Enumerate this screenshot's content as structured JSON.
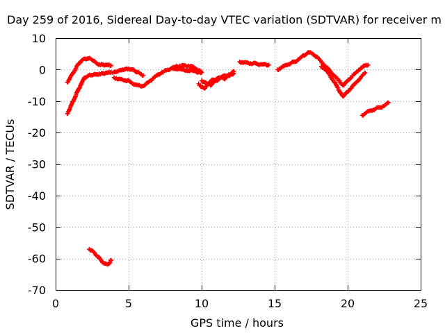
{
  "chart_data": {
    "type": "scatter",
    "title": "Day 259 of 2016, Sidereal Day-to-day VTEC variation (SDTVAR) for receiver m",
    "xlabel": "GPS time / hours",
    "ylabel": "SDTVAR / TECUs",
    "xlim": [
      0,
      25
    ],
    "ylim": [
      -70,
      10
    ],
    "x_ticks": [
      0,
      5,
      10,
      15,
      20,
      25
    ],
    "y_ticks": [
      10,
      0,
      -10,
      -20,
      -30,
      -40,
      -50,
      -60,
      -70
    ],
    "grid": true,
    "legend": "none",
    "marker": "+",
    "color": "#ff0000",
    "series": [
      {
        "x": [
          0.8,
          1.0,
          1.2,
          1.4,
          1.6,
          1.8,
          2.0,
          2.2,
          2.4,
          2.6,
          2.8,
          3.0,
          3.2,
          3.4,
          3.6,
          3.8
        ],
        "y": [
          -4,
          -2.5,
          -1,
          0.5,
          2,
          3,
          3.5,
          3.5,
          3.4,
          2.8,
          2,
          1.7,
          1.6,
          1.5,
          1.4,
          1.3
        ]
      },
      {
        "x": [
          0.8,
          1.0,
          1.2,
          1.4,
          1.6,
          1.8,
          2.0,
          2.2,
          2.4,
          2.6,
          2.8,
          3.0,
          3.2,
          3.4,
          3.6,
          3.8,
          4.0,
          4.2,
          4.4,
          4.6,
          4.8,
          5.0,
          5.2,
          5.4,
          5.6,
          5.8,
          6.0
        ],
        "y": [
          -14,
          -12,
          -10,
          -8,
          -6,
          -4,
          -2.5,
          -2,
          -1.8,
          -1.6,
          -1.5,
          -1.3,
          -1.2,
          -1.1,
          -1,
          -0.8,
          -0.8,
          -0.5,
          -0.2,
          0,
          0.2,
          0.3,
          0.1,
          -0.3,
          -0.8,
          -1.3,
          -1.8
        ]
      },
      {
        "x": [
          4.0,
          4.3,
          4.6,
          4.9,
          5.2,
          5.5,
          5.8,
          6.1,
          6.4,
          6.7,
          7.0,
          7.3,
          7.6,
          7.9,
          8.2,
          8.5,
          8.8,
          9.1,
          9.4,
          9.7,
          10.0
        ],
        "y": [
          -2.5,
          -3,
          -3.2,
          -3.5,
          -4.2,
          -4.8,
          -5.2,
          -5,
          -3.8,
          -2.7,
          -1.6,
          -0.8,
          -0.2,
          0.4,
          0.9,
          1.2,
          1.3,
          1.2,
          1,
          0,
          -0.8
        ]
      },
      {
        "x": [
          8.0,
          8.4,
          8.8,
          9.2,
          9.6,
          10.0
        ],
        "y": [
          0.5,
          0.2,
          -0.1,
          -0.4,
          -0.6,
          -0.9
        ]
      },
      {
        "x": [
          9.8,
          10.0,
          10.2,
          10.4,
          10.6,
          10.8,
          11.0,
          11.2,
          11.4,
          11.6,
          11.8,
          12.0,
          12.2
        ],
        "y": [
          -4.5,
          -5.5,
          -6,
          -4.5,
          -5,
          -4,
          -3.5,
          -3,
          -2.5,
          -3,
          -2,
          -1.5,
          -0.5
        ]
      },
      {
        "x": [
          10.0,
          10.2,
          10.4,
          10.6,
          10.8,
          11.0,
          11.2,
          11.4,
          11.6,
          11.8,
          12.0,
          12.2
        ],
        "y": [
          -3.5,
          -4,
          -4.5,
          -3.8,
          -3.2,
          -3,
          -2.5,
          -2.2,
          -2,
          -1.8,
          -1.5,
          -1.2
        ]
      },
      {
        "x": [
          12.6,
          12.9,
          13.2,
          13.5,
          13.8,
          14.1,
          14.4,
          14.6
        ],
        "y": [
          2.5,
          2.3,
          2.1,
          1.9,
          1.8,
          1.7,
          1.6,
          1.5
        ]
      },
      {
        "x": [
          15.2,
          15.5,
          15.8,
          16.1,
          16.4,
          16.7,
          17.0,
          17.3,
          17.6,
          17.9,
          18.2,
          18.5,
          18.8,
          19.1,
          19.4,
          19.7,
          20.0,
          20.3,
          20.6,
          20.9,
          21.2,
          21.4
        ],
        "y": [
          0,
          0.8,
          1.5,
          2,
          2.5,
          3.5,
          4.5,
          5.5,
          5,
          4,
          2.5,
          1,
          -0.5,
          -2,
          -3.5,
          -5,
          -3.5,
          -2,
          -0.8,
          0.5,
          1.3,
          1.5
        ]
      },
      {
        "x": [
          18.2,
          18.5,
          18.8,
          19.1,
          19.4,
          19.7,
          20.0,
          20.3,
          20.6,
          20.9,
          21.2
        ],
        "y": [
          1,
          0,
          -2,
          -4,
          -6.5,
          -8.5,
          -7,
          -5.5,
          -4,
          -2.5,
          -1
        ]
      },
      {
        "x": [
          21.0,
          21.3,
          21.6,
          21.9,
          22.2,
          22.5,
          22.8
        ],
        "y": [
          -14.5,
          -13.5,
          -13,
          -12.5,
          -12,
          -11.5,
          -10.5
        ]
      },
      {
        "x": [
          2.3,
          2.5,
          2.7,
          2.9,
          3.1,
          3.3,
          3.5,
          3.7,
          3.8
        ],
        "y": [
          -57,
          -57.5,
          -58.5,
          -59.5,
          -60.5,
          -61.5,
          -61.8,
          -61.5,
          -60.5
        ]
      }
    ]
  }
}
